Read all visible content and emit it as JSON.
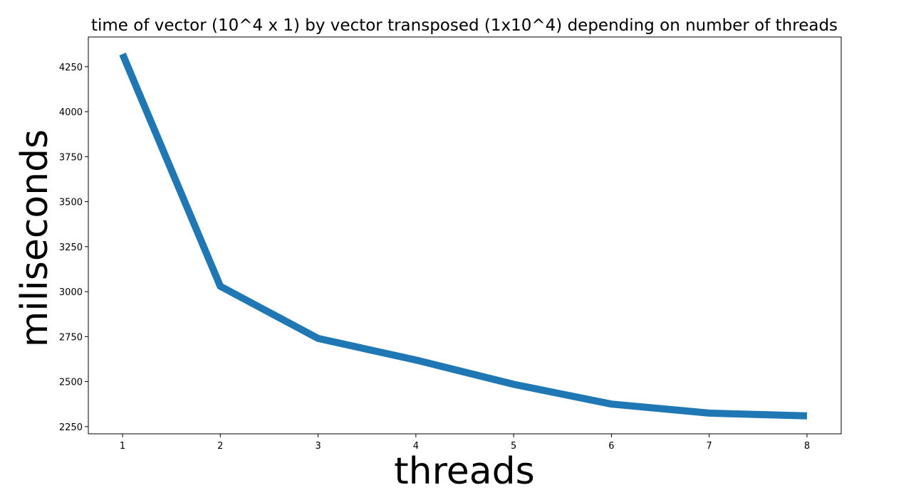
{
  "chart_data": {
    "type": "line",
    "title": "time of vector (10^4 x 1) by vector transposed (1x10^4) depending on number of threads",
    "xlabel": "threads",
    "ylabel": "miliseconds",
    "x": [
      1,
      2,
      3,
      4,
      5,
      6,
      7,
      8
    ],
    "series": [
      {
        "values": [
          4320,
          3030,
          2740,
          2620,
          2485,
          2375,
          2325,
          2310
        ]
      }
    ],
    "x_ticks": [
      "1",
      "2",
      "3",
      "4",
      "5",
      "6",
      "7",
      "8"
    ],
    "y_ticks": [
      "2250",
      "2500",
      "2750",
      "3000",
      "3250",
      "3500",
      "3750",
      "4000",
      "4250"
    ],
    "xlim": [
      0.65,
      8.35
    ],
    "ylim": [
      2210,
      4415
    ],
    "grid": false,
    "legend": "none",
    "line_color": "#1f77b4"
  }
}
